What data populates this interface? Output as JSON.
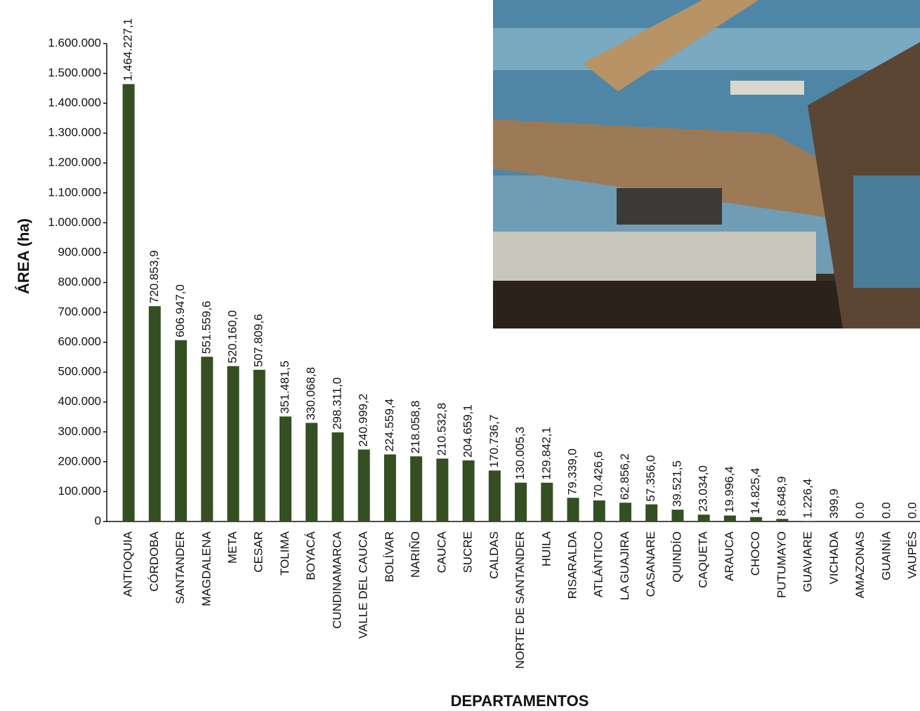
{
  "chart_data": {
    "type": "bar",
    "y_label": "ÁREA (ha)",
    "x_label": "DEPARTAMENTOS",
    "categories": [
      "ANTIOQUIA",
      "CÓRDOBA",
      "SANTANDER",
      "MAGDALENA",
      "META",
      "CESAR",
      "TOLIMA",
      "BOYACÁ",
      "CUNDINAMARCA",
      "VALLE DEL CAUCA",
      "BOLÍVAR",
      "NARIÑO",
      "CAUCA",
      "SUCRE",
      "CALDAS",
      "NORTE DE SANTANDER",
      "HUILA",
      "RISARALDA",
      "ATLÁNTICO",
      "LA GUAJIRA",
      "CASANARE",
      "QUINDÍO",
      "CAQUETA",
      "ARAUCA",
      "CHOCO",
      "PUTUMAYO",
      "GUAVIARE",
      "VICHADA",
      "AMAZONAS",
      "GUAINÍA",
      "VAUPÉS"
    ],
    "values": [
      1464227.1,
      720853.9,
      606947.0,
      551559.6,
      520160.0,
      507809.6,
      351481.5,
      330068.8,
      298311.0,
      240999.2,
      224559.4,
      218058.8,
      210532.8,
      204659.1,
      170736.7,
      130005.3,
      129842.1,
      79339.0,
      70426.6,
      62856.2,
      57356.0,
      39521.5,
      23034.0,
      19996.4,
      14825.4,
      8648.9,
      1226.4,
      399.9,
      0,
      0,
      0
    ],
    "value_labels": [
      "1.464.227,1",
      "720.853,9",
      "606.947,0",
      "551.559,6",
      "520.160,0",
      "507.809,6",
      "351.481,5",
      "330.068,8",
      "298.311,0",
      "240.999,2",
      "224.559,4",
      "218.058,8",
      "210.532,8",
      "204.659,1",
      "170.736,7",
      "130.005,3",
      "129.842,1",
      "79.339,0",
      "70.426,6",
      "62.856,2",
      "57.356,0",
      "39.521,5",
      "23.034,0",
      "19.996,4",
      "14.825,4",
      "8.648,9",
      "1.226,4",
      "399,9",
      "0.0",
      "0.0",
      "0.0"
    ],
    "color": "#344f22",
    "ylim": [
      0,
      1600000
    ],
    "yticks": [
      0,
      {
        "value": 100000,
        "label": "100.000"
      },
      {
        "value": 200000,
        "label": "200.000"
      },
      {
        "value": 300000,
        "label": "300.000"
      },
      {
        "value": 400000,
        "label": "400.000"
      },
      {
        "value": 500000,
        "label": "500.000"
      },
      {
        "value": 600000,
        "label": "600.000"
      },
      {
        "value": 700000,
        "label": "700.000"
      },
      {
        "value": 800000,
        "label": "800.000"
      },
      {
        "value": 900000,
        "label": "900.000"
      },
      {
        "value": 1000000,
        "label": "1.000.000"
      },
      {
        "value": 1100000,
        "label": "1.100.000"
      },
      {
        "value": 1200000,
        "label": "1.200.000"
      },
      {
        "value": 1300000,
        "label": "1.300.000"
      },
      {
        "value": 1400000,
        "label": "1.400.000"
      },
      {
        "value": 1500000,
        "label": "1.500.000"
      },
      {
        "value": 1600000,
        "label": "1.600.000"
      }
    ]
  }
}
